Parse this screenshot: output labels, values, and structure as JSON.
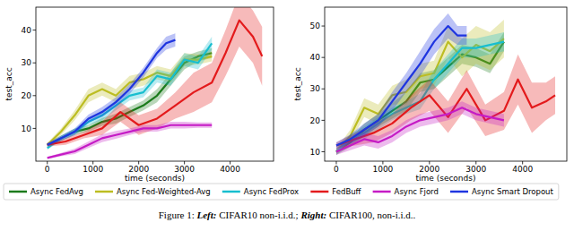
{
  "chart_data": [
    {
      "type": "line",
      "xlabel": "time (seconds)",
      "ylabel": "test_acc",
      "xlim": [
        -250,
        4950
      ],
      "xticks": [
        0,
        1000,
        2000,
        3000,
        4000
      ],
      "ylim": [
        0,
        47
      ],
      "yticks": [
        10,
        20,
        30,
        40
      ],
      "grid": false,
      "legend": "bottom",
      "series": [
        {
          "name": "Async FedAvg",
          "color": "#1b7a1b",
          "x": [
            0,
            300,
            600,
            900,
            1200,
            1500,
            1800,
            2100,
            2400,
            2700,
            3000,
            3300,
            3600
          ],
          "values": [
            5,
            7,
            9,
            10,
            12,
            13,
            15,
            17,
            20,
            25,
            30,
            32,
            33
          ],
          "errors": [
            0.5,
            0.8,
            1,
            1,
            1.2,
            1.5,
            1.5,
            1.5,
            2,
            2,
            2,
            1.5,
            1.5
          ]
        },
        {
          "name": "Async Fed-Weighted-Avg",
          "color": "#bcbd22",
          "x": [
            0,
            300,
            600,
            900,
            1200,
            1500,
            1800,
            2100,
            2400,
            2700,
            3000,
            3300,
            3600
          ],
          "values": [
            5,
            9,
            14,
            20,
            22,
            20,
            24,
            25,
            27,
            26,
            31,
            31,
            32
          ],
          "errors": [
            0.5,
            1,
            1.5,
            2,
            2,
            2,
            2,
            2,
            2,
            2,
            2,
            1.5,
            1.5
          ]
        },
        {
          "name": "Async FedProx",
          "color": "#17becf",
          "x": [
            0,
            300,
            600,
            900,
            1200,
            1500,
            1800,
            2100,
            2400,
            2700,
            3000,
            3300,
            3600
          ],
          "values": [
            4,
            7,
            9,
            12,
            14,
            17,
            20,
            21,
            26,
            25,
            31,
            30,
            36
          ],
          "errors": [
            0.5,
            0.8,
            1,
            1,
            1.5,
            1.5,
            1.5,
            1.5,
            2,
            2,
            2,
            2,
            2
          ]
        },
        {
          "name": "FedBuff",
          "color": "#e31a1c",
          "x": [
            0,
            400,
            800,
            1200,
            1600,
            2000,
            2400,
            2800,
            3200,
            3600,
            3900,
            4200,
            4500,
            4700
          ],
          "values": [
            5,
            6,
            8,
            10,
            15,
            11,
            13,
            17,
            21,
            24,
            33,
            43,
            38,
            32
          ],
          "errors": [
            0.5,
            1,
            1,
            2,
            3,
            3,
            3,
            4,
            6,
            6,
            7,
            8,
            8,
            9
          ]
        },
        {
          "name": "Async Fjord",
          "color": "#c51bc5",
          "x": [
            0,
            300,
            600,
            900,
            1200,
            1500,
            1800,
            2100,
            2400,
            2700,
            3000,
            3300,
            3600
          ],
          "values": [
            1,
            2,
            3,
            5,
            7,
            8,
            9,
            10,
            10,
            11,
            11,
            11,
            11
          ],
          "errors": [
            0.3,
            0.5,
            0.8,
            1,
            1.2,
            1.2,
            1,
            1,
            1,
            1,
            1,
            0.8,
            0.8
          ]
        },
        {
          "name": "Async Smart Dropout",
          "color": "#1f35e0",
          "x": [
            0,
            300,
            600,
            900,
            1200,
            1500,
            1800,
            2100,
            2400,
            2600,
            2800
          ],
          "values": [
            5,
            7,
            9,
            13,
            15,
            18,
            22,
            27,
            33,
            36,
            37
          ],
          "errors": [
            0.5,
            0.8,
            1,
            1.2,
            1.5,
            1.5,
            1.5,
            1.5,
            1.5,
            2,
            2
          ]
        }
      ]
    },
    {
      "type": "line",
      "xlabel": "time (seconds)",
      "ylabel": "test_acc",
      "xlim": [
        -250,
        4950
      ],
      "xticks": [
        0,
        1000,
        2000,
        3000,
        4000
      ],
      "ylim": [
        7,
        56
      ],
      "yticks": [
        10,
        20,
        30,
        40,
        50
      ],
      "grid": false,
      "series": [
        {
          "color": "#1b7a1b",
          "x": [
            0,
            300,
            600,
            900,
            1200,
            1500,
            1800,
            2100,
            2400,
            2700,
            3000,
            3300,
            3600
          ],
          "values": [
            10,
            13,
            17,
            20,
            23,
            26,
            32,
            33,
            37,
            41,
            40,
            38,
            45
          ],
          "errors": [
            1,
            1.5,
            2,
            2,
            2.5,
            3,
            3,
            3,
            3,
            3,
            3,
            3,
            3
          ]
        },
        {
          "color": "#bcbd22",
          "x": [
            0,
            300,
            600,
            900,
            1200,
            1500,
            1800,
            2100,
            2400,
            2700,
            3000,
            3300,
            3600
          ],
          "values": [
            10,
            15,
            24,
            22,
            28,
            29,
            34,
            35,
            45,
            40,
            44,
            42,
            46
          ],
          "errors": [
            1,
            2,
            3,
            3,
            3,
            4,
            4,
            4,
            5,
            6,
            6,
            6,
            6
          ]
        },
        {
          "color": "#17becf",
          "x": [
            0,
            300,
            600,
            900,
            1200,
            1500,
            1800,
            2100,
            2400,
            2700,
            3000,
            3300,
            3600
          ],
          "values": [
            10,
            14,
            16,
            19,
            22,
            24,
            26,
            33,
            38,
            43,
            43,
            44,
            45
          ],
          "errors": [
            1,
            1.5,
            2,
            2,
            2,
            2,
            2.5,
            3,
            3,
            3,
            3,
            3,
            3
          ]
        },
        {
          "color": "#e31a1c",
          "x": [
            0,
            400,
            800,
            1200,
            1600,
            2000,
            2400,
            2800,
            3200,
            3600,
            3900,
            4200,
            4500,
            4700
          ],
          "values": [
            12,
            14,
            16,
            19,
            24,
            28,
            21,
            30,
            20,
            23,
            33,
            24,
            26,
            28
          ],
          "errors": [
            1,
            2,
            3,
            3,
            4,
            5,
            5,
            6,
            5,
            6,
            8,
            8,
            6,
            6
          ]
        },
        {
          "color": "#c51bc5",
          "x": [
            0,
            300,
            600,
            900,
            1200,
            1500,
            1800,
            2100,
            2400,
            2700,
            3000,
            3300,
            3600
          ],
          "values": [
            10,
            12,
            14,
            13,
            15,
            18,
            20,
            21,
            22,
            24,
            22,
            21,
            20
          ],
          "errors": [
            1,
            1.5,
            2,
            2,
            2,
            2,
            2,
            2,
            2,
            2,
            2,
            2,
            2
          ]
        },
        {
          "color": "#1f35e0",
          "x": [
            0,
            300,
            600,
            900,
            1200,
            1500,
            1800,
            2100,
            2400,
            2600,
            2800
          ],
          "values": [
            12,
            14,
            17,
            20,
            26,
            32,
            38,
            45,
            50,
            47,
            47
          ],
          "errors": [
            1,
            1.5,
            2,
            2,
            3,
            3,
            4,
            4,
            4,
            3,
            3
          ]
        }
      ]
    }
  ],
  "caption": {
    "label": "Figure 1:",
    "left_tag": "Left:",
    "left_text": "CIFAR10 non-i.i.d.;",
    "right_tag": "Right:",
    "right_text": "CIFAR100, non-i.i.d.."
  }
}
